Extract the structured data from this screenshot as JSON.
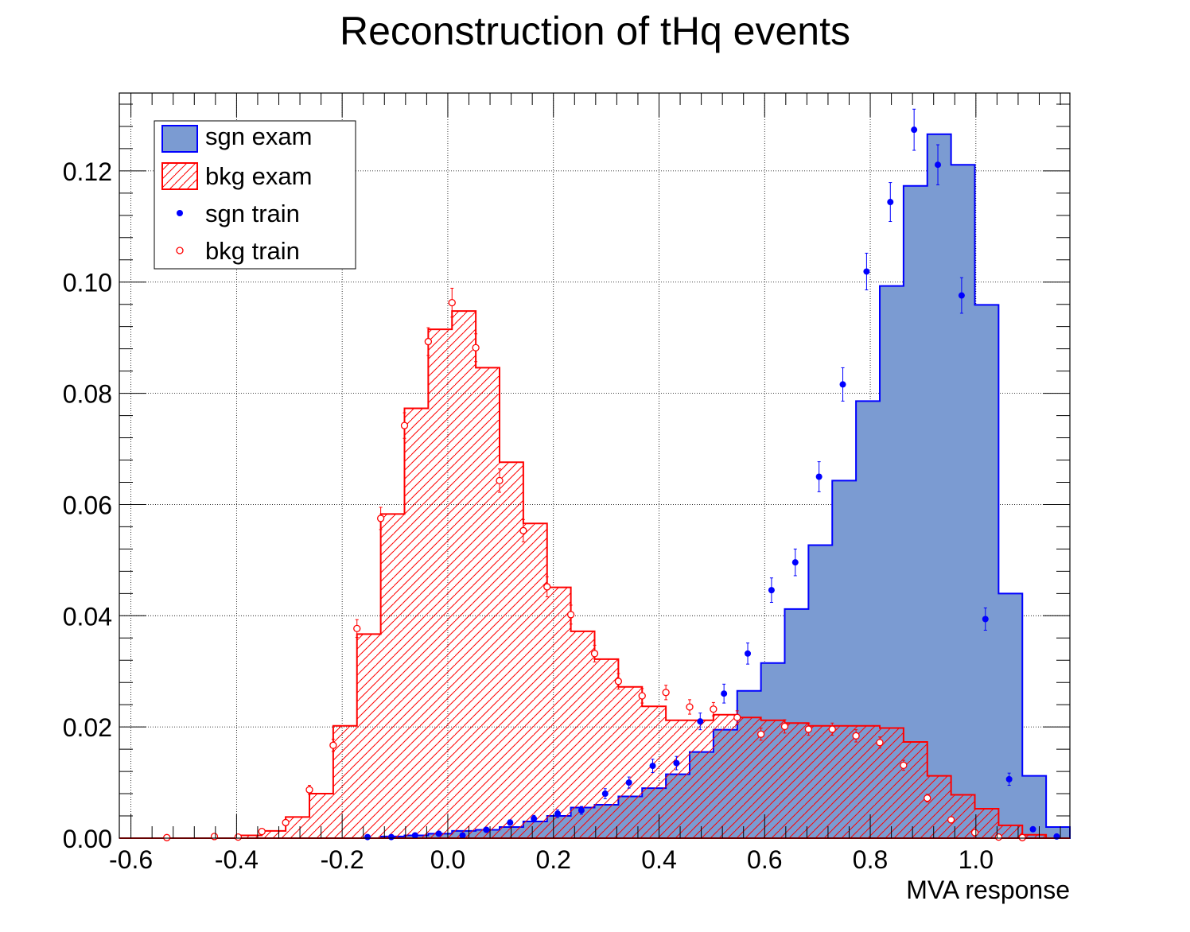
{
  "chart_data": {
    "type": "histogram",
    "title": "Reconstruction of tHq events",
    "xlabel": "MVA response",
    "ylabel": "",
    "xlim": [
      -0.622,
      1.178
    ],
    "ylim": [
      0,
      0.134
    ],
    "x_ticks": [
      -0.6,
      -0.4,
      -0.2,
      0.0,
      0.2,
      0.4,
      0.6,
      0.8,
      1.0
    ],
    "y_ticks": [
      0.0,
      0.02,
      0.04,
      0.06,
      0.08,
      0.1,
      0.12
    ],
    "grid": true,
    "legend_position": "top-left",
    "bin_edges": [
      -0.622,
      -0.577,
      -0.532,
      -0.487,
      -0.442,
      -0.397,
      -0.352,
      -0.307,
      -0.262,
      -0.217,
      -0.172,
      -0.127,
      -0.082,
      -0.037,
      0.008,
      0.053,
      0.098,
      0.143,
      0.188,
      0.233,
      0.278,
      0.323,
      0.368,
      0.413,
      0.458,
      0.503,
      0.548,
      0.593,
      0.638,
      0.683,
      0.728,
      0.773,
      0.818,
      0.863,
      0.908,
      0.953,
      0.998,
      1.043,
      1.088,
      1.133,
      1.178
    ],
    "series": [
      {
        "name": "sgn exam",
        "kind": "filled-histogram",
        "color": "#0000ff",
        "fill": "#7b9bd2",
        "values": [
          0,
          0,
          0,
          0,
          0,
          0,
          0,
          0,
          0,
          0,
          0,
          0.0003,
          0.0005,
          0.0008,
          0.0013,
          0.0015,
          0.002,
          0.003,
          0.004,
          0.0055,
          0.006,
          0.0075,
          0.009,
          0.0115,
          0.0155,
          0.0195,
          0.0265,
          0.0315,
          0.0412,
          0.0527,
          0.0643,
          0.0786,
          0.0993,
          0.1173,
          0.1266,
          0.1211,
          0.0959,
          0.044,
          0.0112,
          0.002
        ]
      },
      {
        "name": "bkg exam",
        "kind": "hatched-histogram",
        "color": "#ff0000",
        "values": [
          0,
          0,
          0,
          0,
          0,
          0.0005,
          0.0013,
          0.0038,
          0.008,
          0.0202,
          0.0367,
          0.0583,
          0.0773,
          0.0915,
          0.0948,
          0.0846,
          0.0676,
          0.0566,
          0.0451,
          0.0372,
          0.0322,
          0.0272,
          0.0237,
          0.0212,
          0.0212,
          0.0222,
          0.0217,
          0.0212,
          0.0207,
          0.0202,
          0.0202,
          0.0202,
          0.0198,
          0.0173,
          0.0112,
          0.0078,
          0.0053,
          0.0023,
          0.0006,
          0
        ]
      },
      {
        "name": "sgn train",
        "kind": "points-filled",
        "color": "#0000ff",
        "x": [
          -0.152,
          -0.107,
          -0.062,
          -0.017,
          0.028,
          0.073,
          0.118,
          0.163,
          0.208,
          0.253,
          0.298,
          0.343,
          0.388,
          0.433,
          0.478,
          0.523,
          0.568,
          0.613,
          0.658,
          0.703,
          0.748,
          0.793,
          0.838,
          0.883,
          0.928,
          0.973,
          1.018,
          1.063,
          1.108,
          1.153
        ],
        "y": [
          0.0002,
          0.0002,
          0.0005,
          0.0008,
          0.0005,
          0.0015,
          0.0028,
          0.0035,
          0.0044,
          0.005,
          0.008,
          0.01,
          0.013,
          0.0135,
          0.021,
          0.026,
          0.0332,
          0.0446,
          0.0496,
          0.065,
          0.0816,
          0.1019,
          0.1144,
          0.1274,
          0.1211,
          0.0976,
          0.0394,
          0.0106,
          0.0016,
          0.0003
        ],
        "yerr": [
          0.0001,
          0.0001,
          0.0002,
          0.0003,
          0.0002,
          0.0004,
          0.0005,
          0.0006,
          0.0007,
          0.0007,
          0.0009,
          0.001,
          0.0012,
          0.0012,
          0.0015,
          0.0017,
          0.0019,
          0.0022,
          0.0024,
          0.0027,
          0.003,
          0.0033,
          0.0035,
          0.0037,
          0.0036,
          0.0032,
          0.002,
          0.0011,
          0.0004,
          0.0002
        ]
      },
      {
        "name": "bkg train",
        "kind": "points-open",
        "color": "#ff0000",
        "x": [
          -0.532,
          -0.442,
          -0.397,
          -0.352,
          -0.307,
          -0.262,
          -0.217,
          -0.172,
          -0.127,
          -0.082,
          -0.037,
          0.008,
          0.053,
          0.098,
          0.143,
          0.188,
          0.233,
          0.278,
          0.323,
          0.368,
          0.413,
          0.458,
          0.503,
          0.548,
          0.593,
          0.638,
          0.683,
          0.728,
          0.773,
          0.818,
          0.863,
          0.908,
          0.953,
          0.998,
          1.043,
          1.088
        ],
        "y": [
          0.0001,
          0.0003,
          0.0002,
          0.0012,
          0.0028,
          0.0087,
          0.0167,
          0.0377,
          0.0575,
          0.0742,
          0.0893,
          0.0963,
          0.0882,
          0.0643,
          0.0553,
          0.0452,
          0.0402,
          0.0332,
          0.0282,
          0.0256,
          0.0262,
          0.0236,
          0.0232,
          0.0217,
          0.0187,
          0.0201,
          0.0196,
          0.0196,
          0.0184,
          0.0172,
          0.0131,
          0.0072,
          0.0033,
          0.001,
          0.0002,
          0.0001
        ],
        "yerr": [
          0.0001,
          0.0002,
          0.0001,
          0.0003,
          0.0004,
          0.0008,
          0.0011,
          0.0016,
          0.002,
          0.0023,
          0.0025,
          0.0026,
          0.0025,
          0.0021,
          0.002,
          0.0018,
          0.0017,
          0.0015,
          0.0014,
          0.0013,
          0.0013,
          0.0013,
          0.0012,
          0.0012,
          0.0011,
          0.0012,
          0.0011,
          0.0011,
          0.0011,
          0.001,
          0.0009,
          0.0007,
          0.0004,
          0.0002,
          0.0001,
          0.0001
        ]
      }
    ],
    "legend": [
      {
        "label": "sgn exam",
        "swatch": "filled-box"
      },
      {
        "label": "bkg exam",
        "swatch": "hatched-box"
      },
      {
        "label": "sgn train",
        "swatch": "filled-dot"
      },
      {
        "label": "bkg train",
        "swatch": "open-dot"
      }
    ]
  }
}
